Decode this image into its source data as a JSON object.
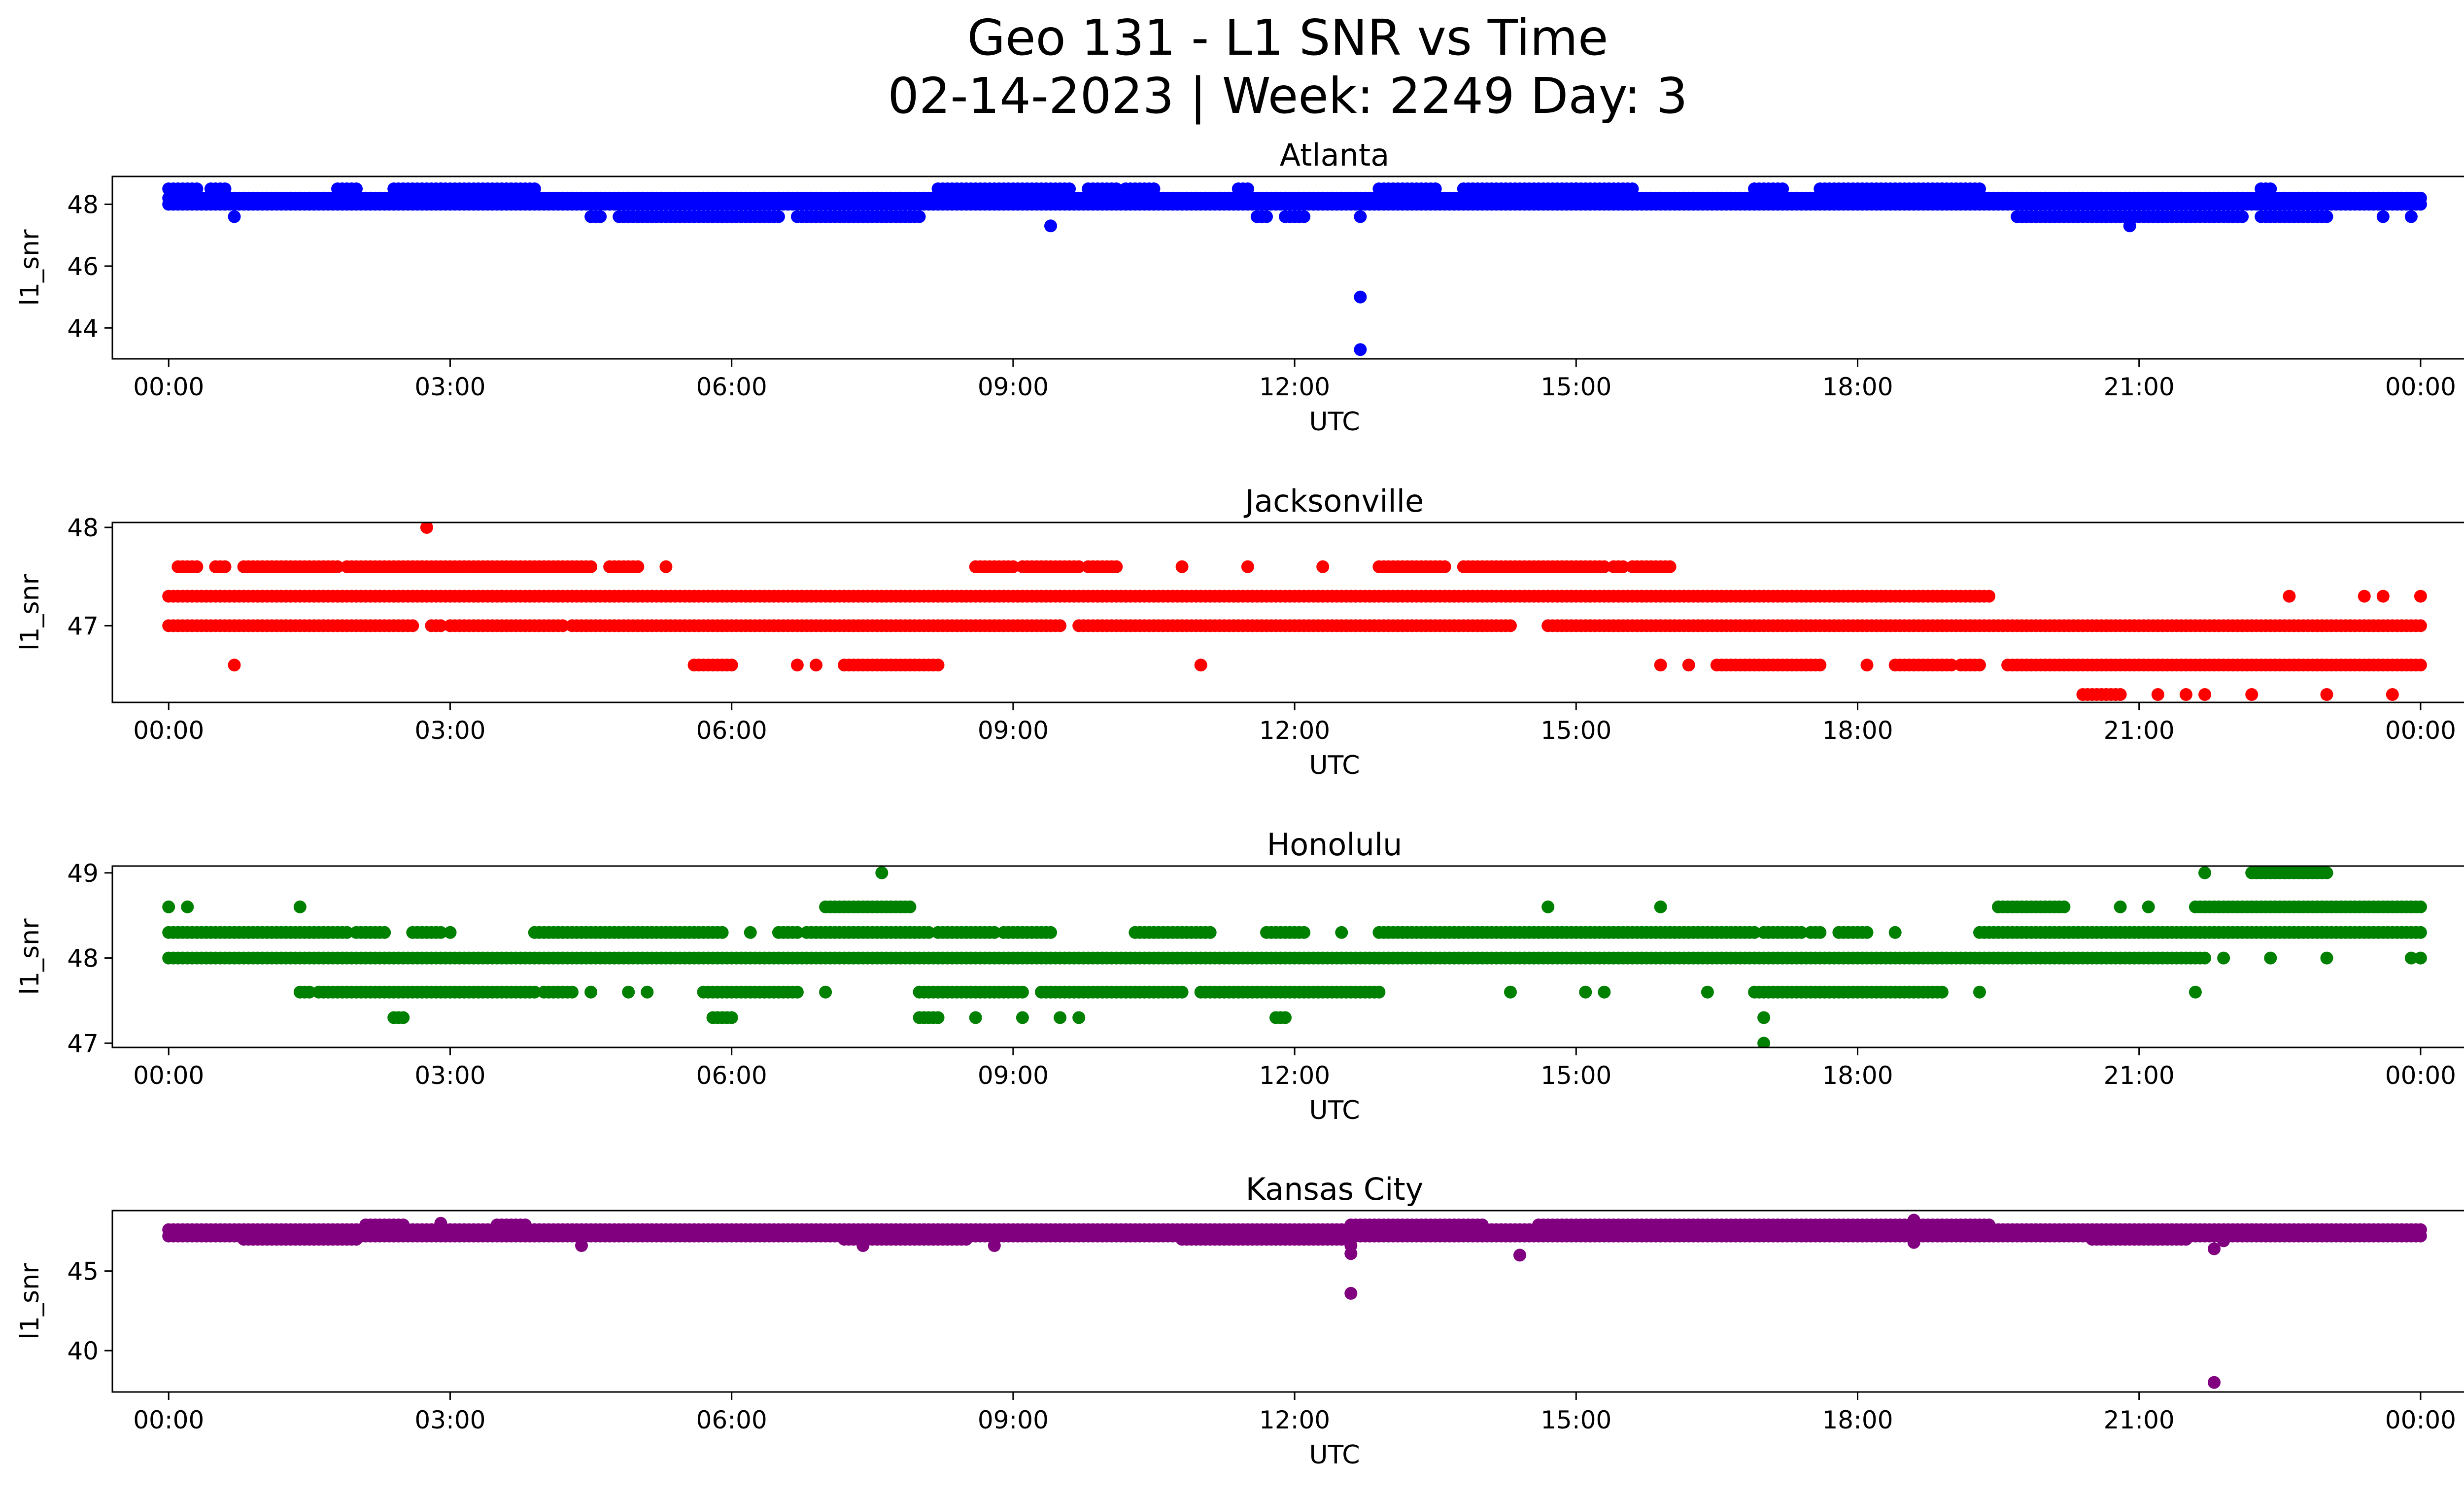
{
  "title_line1": "Geo 131 - L1 SNR vs Time",
  "title_line2": "02-14-2023 | Week: 2249 Day: 3",
  "chart_data": [
    {
      "type": "scatter",
      "title": "Atlanta",
      "xlabel": "UTC",
      "ylabel": "l1_snr",
      "color": "#0000ff",
      "xticks": [
        "00:00",
        "03:00",
        "06:00",
        "09:00",
        "12:00",
        "15:00",
        "18:00",
        "21:00",
        "00:00"
      ],
      "yticks": [
        44,
        46,
        48
      ],
      "ylim": [
        43,
        48.9
      ],
      "xlim_hours": [
        -0.6,
        25.45
      ],
      "bands": [
        {
          "y": 48.2,
          "segments": [
            [
              0,
              24
            ]
          ]
        },
        {
          "y": 48.0,
          "segments": [
            [
              0,
              24
            ]
          ]
        },
        {
          "y": 48.5,
          "segments": [
            [
              0,
              0.3
            ],
            [
              0.45,
              0.6
            ],
            [
              1.8,
              2.0
            ],
            [
              2.4,
              2.9
            ],
            [
              2.9,
              3.9
            ],
            [
              8.2,
              9.6
            ],
            [
              9.8,
              10.1
            ],
            [
              10.2,
              10.5
            ],
            [
              11.4,
              11.5
            ],
            [
              12.9,
              13.5
            ],
            [
              13.8,
              15.0
            ],
            [
              15.0,
              15.6
            ],
            [
              16.9,
              17.2
            ],
            [
              17.6,
              19.3
            ],
            [
              22.3,
              22.4
            ]
          ]
        },
        {
          "y": 47.6,
          "segments": [
            [
              4.5,
              4.6
            ],
            [
              4.8,
              6.5
            ],
            [
              6.7,
              8.0
            ],
            [
              11.6,
              11.7
            ],
            [
              11.9,
              12.1
            ],
            [
              19.7,
              22.1
            ],
            [
              22.3,
              23.0
            ]
          ]
        }
      ],
      "points": [
        [
          0.7,
          47.6
        ],
        [
          9.4,
          47.3
        ],
        [
          12.7,
          47.6
        ],
        [
          12.7,
          45.0
        ],
        [
          12.7,
          43.3
        ],
        [
          20.9,
          47.3
        ],
        [
          23.6,
          47.6
        ],
        [
          23.9,
          47.6
        ]
      ]
    },
    {
      "type": "scatter",
      "title": "Jacksonville",
      "xlabel": "UTC",
      "ylabel": "l1_snr",
      "color": "#ff0000",
      "xticks": [
        "00:00",
        "03:00",
        "06:00",
        "09:00",
        "12:00",
        "15:00",
        "18:00",
        "21:00",
        "00:00"
      ],
      "yticks": [
        47,
        48
      ],
      "ylim": [
        46.22,
        48.05
      ],
      "xlim_hours": [
        -0.6,
        25.45
      ],
      "bands": [
        {
          "y": 47.3,
          "segments": [
            [
              0,
              19.4
            ]
          ]
        },
        {
          "y": 47.0,
          "segments": [
            [
              0,
              2.6
            ],
            [
              2.8,
              2.9
            ],
            [
              3.0,
              4.2
            ],
            [
              4.3,
              9.5
            ],
            [
              9.7,
              14.3
            ],
            [
              14.7,
              24
            ]
          ]
        },
        {
          "y": 47.6,
          "segments": [
            [
              0.1,
              0.3
            ],
            [
              0.5,
              0.6
            ],
            [
              0.8,
              1.8
            ],
            [
              1.9,
              4.5
            ],
            [
              4.7,
              5.0
            ],
            [
              8.6,
              9.0
            ],
            [
              9.1,
              9.7
            ],
            [
              9.8,
              10.1
            ],
            [
              12.9,
              13.6
            ],
            [
              13.8,
              15.3
            ],
            [
              15.4,
              15.5
            ],
            [
              15.6,
              16.0
            ]
          ]
        },
        {
          "y": 46.6,
          "segments": [
            [
              5.6,
              6.0
            ],
            [
              7.2,
              8.2
            ],
            [
              16.5,
              17.6
            ],
            [
              18.4,
              19.0
            ],
            [
              19.1,
              19.3
            ],
            [
              19.6,
              24
            ]
          ]
        },
        {
          "y": 46.3,
          "segments": [
            [
              20.4,
              20.8
            ]
          ]
        }
      ],
      "points": [
        [
          0.7,
          46.6
        ],
        [
          2.75,
          48.0
        ],
        [
          5.3,
          47.6
        ],
        [
          6.7,
          46.6
        ],
        [
          6.9,
          46.6
        ],
        [
          10.8,
          47.6
        ],
        [
          11.0,
          46.6
        ],
        [
          11.5,
          47.6
        ],
        [
          12.3,
          47.6
        ],
        [
          15.9,
          46.6
        ],
        [
          16.2,
          46.6
        ],
        [
          21.2,
          46.3
        ],
        [
          21.5,
          46.3
        ],
        [
          21.7,
          46.3
        ],
        [
          22.2,
          46.3
        ],
        [
          22.6,
          47.3
        ],
        [
          23.0,
          46.3
        ],
        [
          23.7,
          46.3
        ],
        [
          23.4,
          47.3
        ],
        [
          23.6,
          47.3
        ],
        [
          24.0,
          47.3
        ],
        [
          18.1,
          46.6
        ]
      ]
    },
    {
      "type": "scatter",
      "title": "Honolulu",
      "xlabel": "UTC",
      "ylabel": "l1_snr",
      "color": "#008000",
      "xticks": [
        "00:00",
        "03:00",
        "06:00",
        "09:00",
        "12:00",
        "15:00",
        "18:00",
        "21:00",
        "00:00"
      ],
      "yticks": [
        47,
        48,
        49
      ],
      "ylim": [
        46.95,
        49.08
      ],
      "xlim_hours": [
        -0.6,
        25.45
      ],
      "bands": [
        {
          "y": 48.0,
          "segments": [
            [
              0,
              21.7
            ]
          ]
        },
        {
          "y": 48.3,
          "segments": [
            [
              0,
              1.9
            ],
            [
              2.0,
              2.3
            ],
            [
              2.6,
              2.9
            ],
            [
              3.9,
              5.9
            ],
            [
              6.5,
              6.7
            ],
            [
              6.8,
              8.1
            ],
            [
              8.2,
              8.8
            ],
            [
              8.9,
              9.4
            ],
            [
              10.3,
              11.1
            ],
            [
              11.7,
              12.1
            ],
            [
              12.9,
              16.9
            ],
            [
              17.0,
              17.4
            ],
            [
              17.5,
              17.6
            ],
            [
              17.8,
              18.1
            ],
            [
              19.3,
              24
            ]
          ]
        },
        {
          "y": 47.6,
          "segments": [
            [
              1.4,
              1.5
            ],
            [
              1.6,
              3.9
            ],
            [
              4.0,
              4.3
            ],
            [
              5.7,
              6.7
            ],
            [
              8.0,
              9.1
            ],
            [
              9.3,
              10.8
            ],
            [
              11.0,
              12.9
            ],
            [
              16.9,
              18.9
            ]
          ]
        },
        {
          "y": 48.6,
          "segments": [
            [
              7.0,
              7.9
            ],
            [
              19.5,
              20.2
            ],
            [
              21.6,
              24
            ]
          ]
        },
        {
          "y": 47.3,
          "segments": [
            [
              2.4,
              2.5
            ],
            [
              5.8,
              6.0
            ],
            [
              8.0,
              8.2
            ],
            [
              11.8,
              11.9
            ]
          ]
        },
        {
          "y": 49.0,
          "segments": [
            [
              22.2,
              23.0
            ]
          ]
        }
      ],
      "points": [
        [
          0.0,
          48.6
        ],
        [
          0.2,
          48.6
        ],
        [
          1.4,
          48.6
        ],
        [
          3.0,
          48.3
        ],
        [
          4.5,
          47.6
        ],
        [
          4.9,
          47.6
        ],
        [
          5.1,
          47.6
        ],
        [
          6.2,
          48.3
        ],
        [
          7.0,
          47.6
        ],
        [
          7.6,
          49.0
        ],
        [
          8.6,
          47.3
        ],
        [
          9.1,
          47.3
        ],
        [
          9.5,
          47.3
        ],
        [
          9.7,
          47.3
        ],
        [
          12.5,
          48.3
        ],
        [
          14.3,
          47.6
        ],
        [
          14.7,
          48.6
        ],
        [
          15.1,
          47.6
        ],
        [
          15.3,
          47.6
        ],
        [
          15.9,
          48.6
        ],
        [
          16.4,
          47.6
        ],
        [
          17.0,
          47.3
        ],
        [
          17.0,
          47.0
        ],
        [
          18.4,
          48.3
        ],
        [
          19.3,
          47.6
        ],
        [
          20.2,
          48.0
        ],
        [
          20.8,
          48.6
        ],
        [
          21.1,
          48.6
        ],
        [
          21.6,
          47.6
        ],
        [
          21.7,
          49.0
        ],
        [
          21.9,
          48.0
        ],
        [
          22.4,
          48.0
        ],
        [
          23.0,
          48.0
        ],
        [
          23.9,
          48.0
        ],
        [
          24.0,
          48.0
        ]
      ]
    },
    {
      "type": "scatter",
      "title": "Kansas City",
      "xlabel": "UTC",
      "ylabel": "l1_snr",
      "color": "#800080",
      "xticks": [
        "00:00",
        "03:00",
        "06:00",
        "09:00",
        "12:00",
        "15:00",
        "18:00",
        "21:00",
        "00:00"
      ],
      "yticks": [
        40,
        45
      ],
      "ylim": [
        37.4,
        48.8
      ],
      "xlim_hours": [
        -0.6,
        25.45
      ],
      "bands": [
        {
          "y": 47.6,
          "segments": [
            [
              0,
              24
            ]
          ]
        },
        {
          "y": 47.2,
          "segments": [
            [
              0,
              24
            ]
          ]
        },
        {
          "y": 47.9,
          "segments": [
            [
              2.1,
              2.5
            ],
            [
              3.5,
              3.8
            ],
            [
              12.6,
              14.0
            ],
            [
              14.6,
              19.4
            ]
          ]
        },
        {
          "y": 47.0,
          "segments": [
            [
              0.8,
              2.0
            ],
            [
              7.2,
              8.5
            ],
            [
              10.8,
              12.5
            ],
            [
              20.5,
              21.5
            ]
          ]
        }
      ],
      "points": [
        [
          2.9,
          48.0
        ],
        [
          4.4,
          46.6
        ],
        [
          7.4,
          46.6
        ],
        [
          8.8,
          46.6
        ],
        [
          12.6,
          46.6
        ],
        [
          12.6,
          46.1
        ],
        [
          12.6,
          43.6
        ],
        [
          14.4,
          46.0
        ],
        [
          18.6,
          48.2
        ],
        [
          18.6,
          46.8
        ],
        [
          21.8,
          46.4
        ],
        [
          21.8,
          38.0
        ],
        [
          21.9,
          46.9
        ]
      ]
    }
  ]
}
